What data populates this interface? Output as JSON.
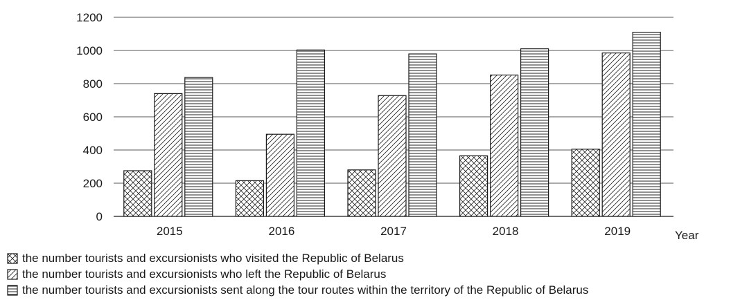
{
  "chart_data": {
    "type": "bar",
    "title": "",
    "xlabel": "Year",
    "ylabel": "",
    "categories": [
      "2015",
      "2016",
      "2017",
      "2018",
      "2019"
    ],
    "ylim": [
      0,
      1200
    ],
    "yticks": [
      "0",
      "200",
      "400",
      "600",
      "800",
      "1000",
      "1200"
    ],
    "grid": "horizontal",
    "legend_position": "bottom",
    "series": [
      {
        "name": "the number tourists and excursionists who visited the Republic of Belarus",
        "pattern": "crosshatch",
        "values": [
          275,
          215,
          280,
          365,
          405
        ]
      },
      {
        "name": "the number tourists and excursionists who left the Republic of Belarus",
        "pattern": "diagonal",
        "values": [
          740,
          495,
          728,
          852,
          985
        ]
      },
      {
        "name": "the number tourists and excursionists sent along the tour routes within the territory of the Republic of Belarus",
        "pattern": "horizontal",
        "values": [
          837,
          1003,
          979,
          1010,
          1110
        ]
      }
    ]
  }
}
